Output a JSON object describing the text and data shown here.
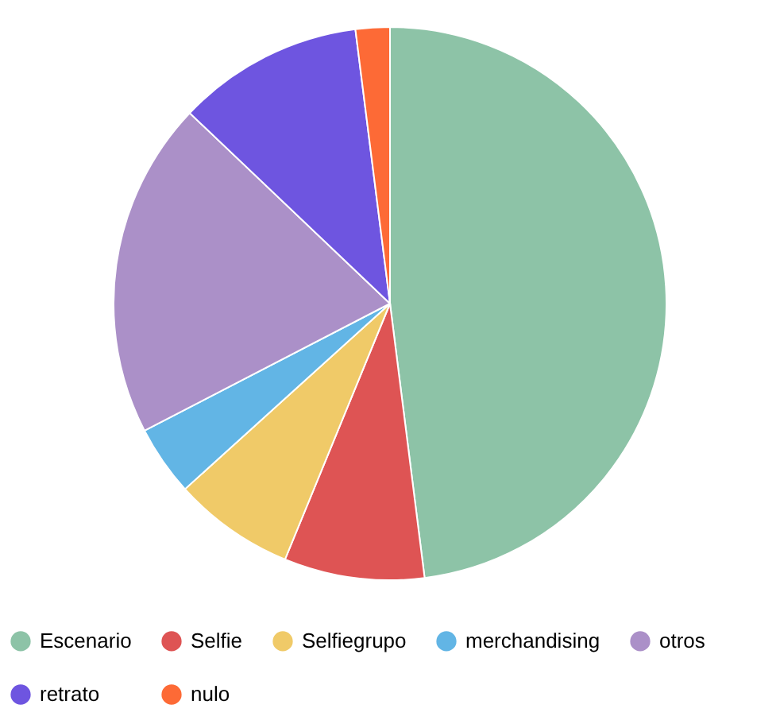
{
  "chart_data": {
    "type": "pie",
    "categories": [
      "Escenario",
      "Selfie",
      "Selfiegrupo",
      "merchandising",
      "otros",
      "retrato",
      "nulo"
    ],
    "values": [
      48,
      8.2,
      7.1,
      4.1,
      19.7,
      10.9,
      2.0
    ],
    "colors": [
      "#8dc3a7",
      "#de5454",
      "#f0ca68",
      "#62b5e5",
      "#ab90c8",
      "#6e55e0",
      "#fd6a36"
    ],
    "legend": "bottom"
  }
}
